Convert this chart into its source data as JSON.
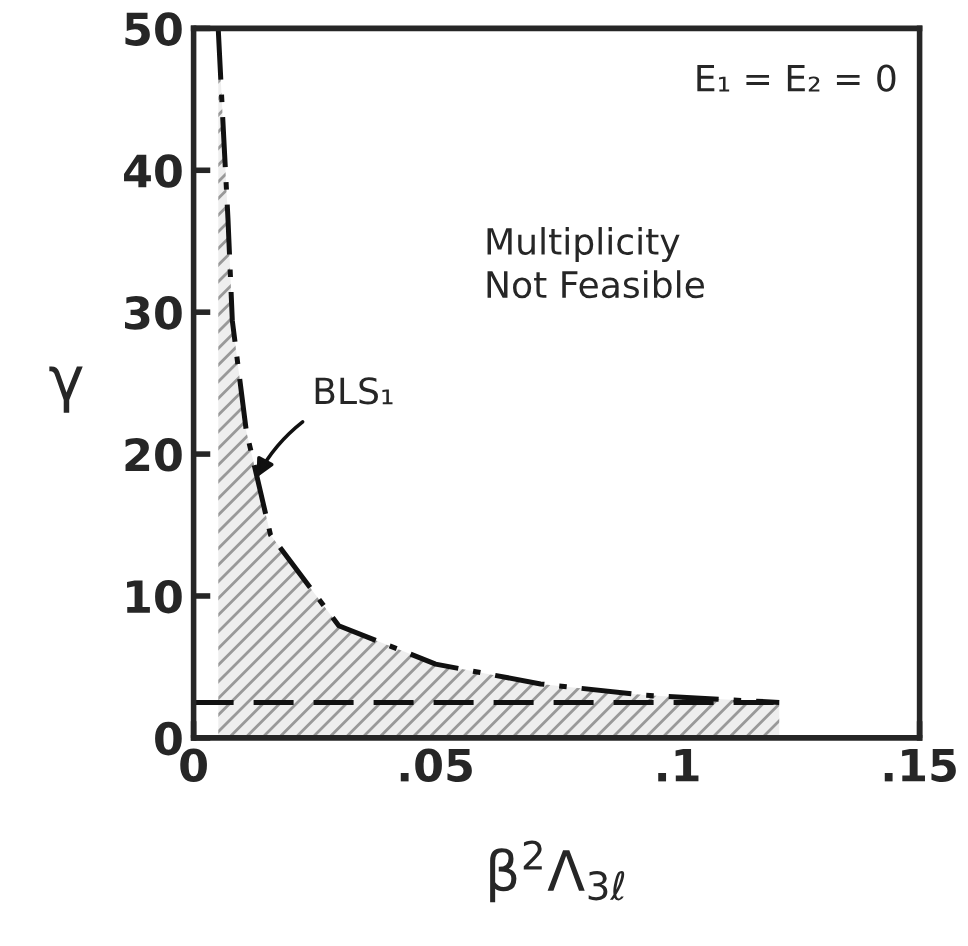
{
  "chart_data": {
    "type": "line",
    "xlabel": "β$^{2}$Λ$_{3ℓ}$",
    "ylabel": "γ",
    "series": [
      {
        "type": "area",
        "line_style": "dashdot",
        "color": "#111111",
        "x": [
          0.0051,
          0.006,
          0.0071,
          0.008,
          0.0109,
          0.0159,
          0.03,
          0.05,
          0.0717,
          0.0935,
          0.121
        ],
        "values": [
          49.9,
          43.8,
          36.6,
          29.4,
          21.6,
          14.3,
          7.9,
          5.2,
          3.8,
          3.0,
          2.5
        ]
      },
      {
        "line_style": "dashed",
        "color": "#111111",
        "x": [
          0.0,
          0.12
        ],
        "values": [
          2.5,
          2.5
        ]
      }
    ],
    "annotations": [
      {
        "text": "BLS₁",
        "x": 0.0125,
        "y": 18
      },
      "E₁ = E₂ = 0",
      "Multiplicity\nNot Feasible"
    ],
    "xlim": [
      0,
      0.15
    ],
    "ylim": [
      0,
      50
    ],
    "xticks": [
      0,
      {
        "value": 0.05,
        "label": ".05"
      },
      {
        "value": 0.1,
        "label": ".1"
      },
      {
        "value": 0.15,
        "label": ".15"
      }
    ],
    "yticks": [
      0,
      10,
      20,
      30,
      40,
      50
    ],
    "grid": false,
    "legend": false
  }
}
